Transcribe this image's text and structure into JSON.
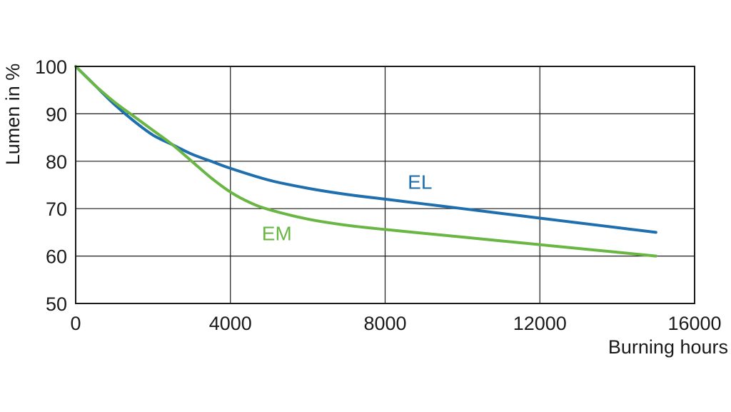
{
  "chart_data": {
    "type": "line",
    "title": "",
    "xlabel": "Burning hours",
    "ylabel": "Lumen in %",
    "xlim": [
      0,
      16000
    ],
    "ylim": [
      50,
      100
    ],
    "x_ticks": [
      0,
      4000,
      8000,
      12000,
      16000
    ],
    "y_ticks": [
      50,
      60,
      70,
      80,
      90,
      100
    ],
    "x_tick_labels": [
      "0",
      "4000",
      "8000",
      "12000",
      "16000"
    ],
    "y_tick_labels": [
      "50",
      "60",
      "70",
      "80",
      "90",
      "100"
    ],
    "grid": true,
    "legend": "inline labels",
    "series": [
      {
        "name": "EL",
        "color": "#1f6fae",
        "x": [
          0,
          500,
          1000,
          1500,
          2000,
          2500,
          3000,
          3500,
          4000,
          5000,
          6000,
          7000,
          8000,
          9000,
          10000,
          11000,
          12000,
          13000,
          14000,
          15000
        ],
        "y": [
          100,
          96,
          92,
          88.5,
          85.5,
          83.5,
          81.5,
          80,
          78.5,
          76,
          74.3,
          73,
          72,
          71,
          70,
          69,
          68,
          67,
          66,
          65
        ]
      },
      {
        "name": "EM",
        "color": "#6ab645",
        "x": [
          0,
          500,
          1000,
          1500,
          2000,
          2500,
          3000,
          3500,
          4000,
          4500,
          5000,
          6000,
          7000,
          8000,
          9000,
          10000,
          11000,
          12000,
          13000,
          14000,
          15000
        ],
        "y": [
          100,
          96,
          92.5,
          89.5,
          86.5,
          83.5,
          80,
          76.5,
          73.5,
          71.3,
          69.8,
          67.8,
          66.5,
          65.6,
          64.8,
          64,
          63.2,
          62.4,
          61.6,
          60.8,
          60
        ]
      }
    ]
  }
}
